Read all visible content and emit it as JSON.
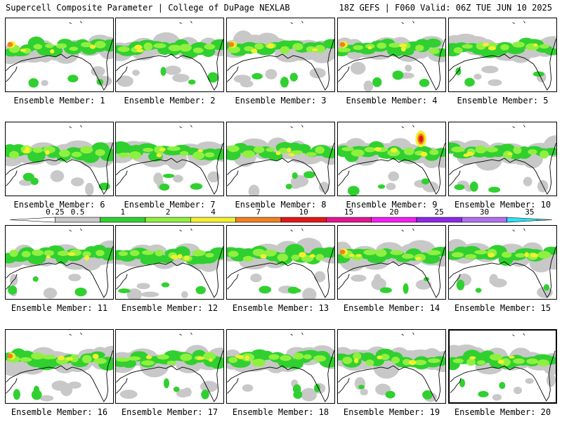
{
  "header": {
    "left_title": "Supercell Composite Parameter | College of DuPage NEXLAB",
    "right_title": "18Z GEFS | F060 Valid: 06Z TUE JUN 10 2025"
  },
  "panel_label_prefix": "Ensemble Member: ",
  "members": [
    {
      "id": "1",
      "label": "Ensemble Member: 1",
      "hot": "orange"
    },
    {
      "id": "2",
      "label": "Ensemble Member: 2",
      "hot": "none"
    },
    {
      "id": "3",
      "label": "Ensemble Member: 3",
      "hot": "orange"
    },
    {
      "id": "4",
      "label": "Ensemble Member: 4",
      "hot": "orange"
    },
    {
      "id": "5",
      "label": "Ensemble Member: 5",
      "hot": "none"
    },
    {
      "id": "6",
      "label": "Ensemble Member: 6",
      "hot": "none"
    },
    {
      "id": "7",
      "label": "Ensemble Member: 7",
      "hot": "none"
    },
    {
      "id": "8",
      "label": "Ensemble Member: 8",
      "hot": "none"
    },
    {
      "id": "9",
      "label": "Ensemble Member: 9",
      "hot": "red"
    },
    {
      "id": "10",
      "label": "Ensemble Member: 10",
      "hot": "none"
    },
    {
      "id": "11",
      "label": "Ensemble Member: 11",
      "hot": "none"
    },
    {
      "id": "12",
      "label": "Ensemble Member: 12",
      "hot": "none"
    },
    {
      "id": "13",
      "label": "Ensemble Member: 13",
      "hot": "none"
    },
    {
      "id": "14",
      "label": "Ensemble Member: 14",
      "hot": "orange"
    },
    {
      "id": "15",
      "label": "Ensemble Member: 15",
      "hot": "none"
    },
    {
      "id": "16",
      "label": "Ensemble Member: 16",
      "hot": "orange"
    },
    {
      "id": "17",
      "label": "Ensemble Member: 17",
      "hot": "none"
    },
    {
      "id": "18",
      "label": "Ensemble Member: 18",
      "hot": "none"
    },
    {
      "id": "19",
      "label": "Ensemble Member: 19",
      "hot": "none"
    },
    {
      "id": "20",
      "label": "Ensemble Member: 20",
      "hot": "none",
      "selected": true
    }
  ],
  "colorbar": {
    "levels": [
      "0.25",
      "0.5",
      "1",
      "2",
      "4",
      "7",
      "10",
      "15",
      "20",
      "25",
      "30",
      "35"
    ],
    "colors": [
      "#ffffff",
      "#c8c8c8",
      "#30d030",
      "#90f040",
      "#f0f030",
      "#f08020",
      "#e01818",
      "#e01890",
      "#f020f0",
      "#8c28e8",
      "#b070f0",
      "#30e0f0"
    ]
  },
  "map_colors": {
    "gray": "#c8c8c8",
    "green": "#30d030",
    "light_green": "#90f040",
    "yellow": "#f0f030",
    "orange": "#f08020",
    "red": "#e01818"
  }
}
